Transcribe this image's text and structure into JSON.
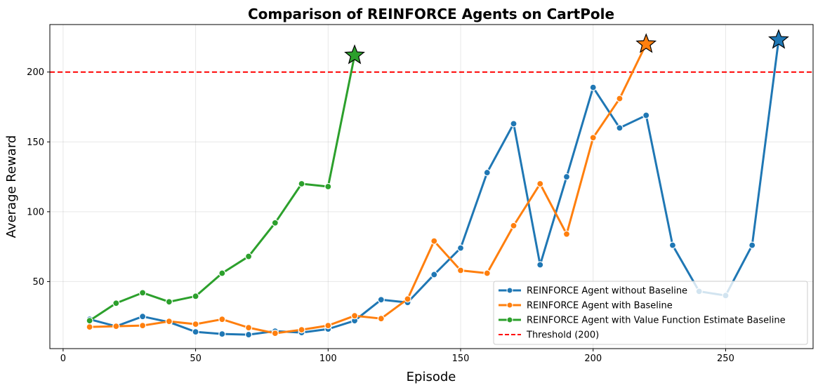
{
  "chart_data": {
    "type": "line",
    "title": "Comparison of REINFORCE Agents on CartPole",
    "xlabel": "Episode",
    "ylabel": "Average Reward",
    "xlim": [
      -5,
      283
    ],
    "ylim": [
      2,
      234
    ],
    "xticks": [
      0,
      50,
      100,
      150,
      200,
      250
    ],
    "yticks": [
      50,
      100,
      150,
      200
    ],
    "grid": true,
    "legend_position": "lower-right",
    "series": [
      {
        "name": "REINFORCE Agent without Baseline",
        "color": "#1f77b4",
        "x": [
          10,
          20,
          30,
          40,
          50,
          60,
          70,
          80,
          90,
          100,
          110,
          120,
          130,
          140,
          150,
          160,
          170,
          180,
          190,
          200,
          210,
          220,
          230,
          240,
          250,
          260,
          270
        ],
        "y": [
          23,
          18,
          25,
          21,
          14,
          12.5,
          12,
          14.5,
          13.5,
          16,
          22,
          37,
          35,
          55,
          74,
          128,
          163,
          62,
          125,
          189,
          160,
          169,
          76,
          43,
          40,
          76,
          223
        ],
        "star_point": [
          270,
          223
        ]
      },
      {
        "name": "REINFORCE Agent with Baseline",
        "color": "#ff7f0e",
        "x": [
          10,
          20,
          30,
          40,
          50,
          60,
          70,
          80,
          90,
          100,
          110,
          120,
          130,
          140,
          150,
          160,
          170,
          180,
          190,
          200,
          210,
          220
        ],
        "y": [
          17.5,
          18,
          18.5,
          21.5,
          19.5,
          23,
          17,
          13,
          15.5,
          18.5,
          25.5,
          23.5,
          37.5,
          79,
          58,
          56,
          90,
          120,
          84,
          153,
          181,
          220
        ],
        "star_point": [
          220,
          220
        ]
      },
      {
        "name": "REINFORCE Agent with Value Function Estimate Baseline",
        "color": "#2ca02c",
        "x": [
          10,
          20,
          30,
          40,
          50,
          60,
          70,
          80,
          90,
          100,
          110
        ],
        "y": [
          22,
          34.5,
          42,
          35.5,
          39.5,
          56,
          68,
          92,
          120,
          118,
          212
        ],
        "star_point": [
          110,
          212
        ]
      }
    ],
    "threshold": {
      "name": "Threshold (200)",
      "value": 200,
      "color": "#ff0000"
    }
  }
}
